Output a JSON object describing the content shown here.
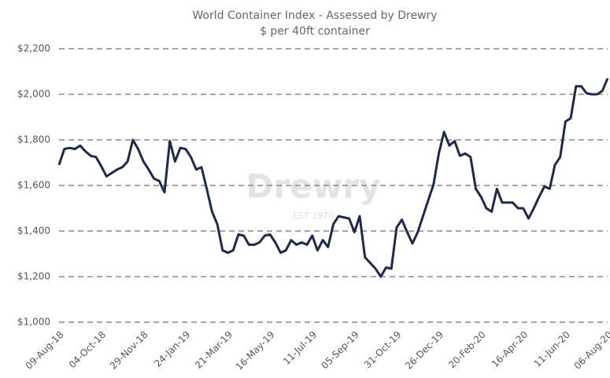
{
  "chart_data": {
    "type": "line",
    "title": "World Container Index - Assessed by Drewry",
    "subtitle": "$ per 40ft container",
    "watermark": "Drewry",
    "watermark_sub": "EST 1970",
    "categories": [
      "09-Aug-18",
      null,
      null,
      null,
      null,
      null,
      null,
      null,
      "04-Oct-18",
      null,
      null,
      null,
      null,
      null,
      null,
      null,
      "29-Nov-18",
      null,
      null,
      null,
      null,
      null,
      null,
      null,
      "24-Jan-19",
      null,
      null,
      null,
      null,
      null,
      null,
      null,
      "21-Mar-19",
      null,
      null,
      null,
      null,
      null,
      null,
      null,
      "16-May-19",
      null,
      null,
      null,
      null,
      null,
      null,
      null,
      "11-Jul-19",
      null,
      null,
      null,
      null,
      null,
      null,
      null,
      "05-Sep-19",
      null,
      null,
      null,
      null,
      null,
      null,
      null,
      "31-Oct-19",
      null,
      null,
      null,
      null,
      null,
      null,
      null,
      "26-Dec-19",
      null,
      null,
      null,
      null,
      null,
      null,
      null,
      "20-Feb-20",
      null,
      null,
      null,
      null,
      null,
      null,
      null,
      "16-Apr-20",
      null,
      null,
      null,
      null,
      null,
      null,
      null,
      "11-Jun-20",
      null,
      null,
      null,
      null,
      null,
      null,
      null,
      "06-Aug-20"
    ],
    "values": [
      1690,
      1760,
      1765,
      1760,
      1775,
      1750,
      1730,
      1725,
      1685,
      1640,
      1655,
      1670,
      1680,
      1705,
      1800,
      1760,
      1705,
      1670,
      1630,
      1620,
      1570,
      1795,
      1705,
      1765,
      1760,
      1725,
      1670,
      1680,
      1585,
      1485,
      1430,
      1315,
      1305,
      1315,
      1385,
      1380,
      1340,
      1340,
      1350,
      1380,
      1385,
      1350,
      1305,
      1315,
      1360,
      1340,
      1350,
      1340,
      1380,
      1315,
      1360,
      1330,
      1430,
      1465,
      1460,
      1455,
      1395,
      1465,
      1285,
      1260,
      1235,
      1200,
      1240,
      1235,
      1415,
      1450,
      1395,
      1345,
      1395,
      1465,
      1535,
      1605,
      1740,
      1835,
      1775,
      1795,
      1730,
      1740,
      1725,
      1585,
      1550,
      1500,
      1485,
      1585,
      1525,
      1525,
      1525,
      1500,
      1500,
      1455,
      1500,
      1550,
      1595,
      1585,
      1690,
      1725,
      1880,
      1895,
      2035,
      2035,
      2005,
      2000,
      2000,
      2015,
      2070
    ],
    "color": "#1e2a4a",
    "ylim": [
      1000,
      2200
    ],
    "yticks": [
      {
        "value": 1000,
        "label": "$1,000"
      },
      {
        "value": 1200,
        "label": "$1,200"
      },
      {
        "value": 1400,
        "label": "$1,400"
      },
      {
        "value": 1600,
        "label": "$1,600"
      },
      {
        "value": 1800,
        "label": "$1,800"
      },
      {
        "value": 2000,
        "label": "$2,000"
      },
      {
        "value": 2200,
        "label": "$2,200"
      }
    ],
    "grid": true
  }
}
